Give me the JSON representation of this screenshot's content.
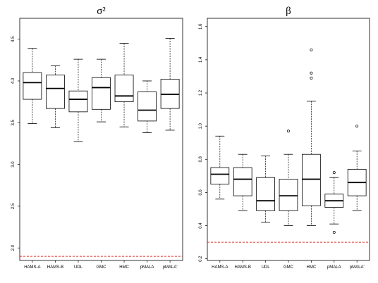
{
  "chart_data": [
    {
      "type": "boxplot",
      "title": "σ²",
      "ylim": [
        1.85,
        4.75
      ],
      "yticks": [
        "2.0",
        "2.5",
        "3.0",
        "3.5",
        "4.0",
        "4.5"
      ],
      "categories": [
        "HAMS-A",
        "HAMS-B",
        "UDL",
        "GMC",
        "HMC",
        "pMALA",
        "pMALA'"
      ],
      "boxes": [
        {
          "min": 3.49,
          "q1": 3.78,
          "median": 3.98,
          "q3": 4.1,
          "max": 4.39,
          "outliers": []
        },
        {
          "min": 3.44,
          "q1": 3.67,
          "median": 3.91,
          "q3": 4.07,
          "max": 4.18,
          "outliers": []
        },
        {
          "min": 3.27,
          "q1": 3.63,
          "median": 3.78,
          "q3": 3.88,
          "max": 4.26,
          "outliers": []
        },
        {
          "min": 3.51,
          "q1": 3.66,
          "median": 3.92,
          "q3": 4.04,
          "max": 4.26,
          "outliers": []
        },
        {
          "min": 3.45,
          "q1": 3.75,
          "median": 3.82,
          "q3": 4.07,
          "max": 4.45,
          "outliers": []
        },
        {
          "min": 3.38,
          "q1": 3.52,
          "median": 3.65,
          "q3": 3.87,
          "max": 4.0,
          "outliers": []
        },
        {
          "min": 3.41,
          "q1": 3.67,
          "median": 3.84,
          "q3": 4.02,
          "max": 4.51,
          "outliers": []
        }
      ],
      "reference_line": {
        "y": 1.9,
        "color": "#e0302a",
        "style": "dashed"
      }
    },
    {
      "type": "boxplot",
      "title": "β",
      "ylim": [
        0.19,
        1.65
      ],
      "yticks": [
        "0.2",
        "0.4",
        "0.6",
        "0.8",
        "1.0",
        "1.2",
        "1.4",
        "1.6"
      ],
      "categories": [
        "HAMS-A",
        "HAMS-B",
        "UDL",
        "GMC",
        "HMC",
        "pMALA",
        "pMALA'"
      ],
      "boxes": [
        {
          "min": 0.56,
          "q1": 0.65,
          "median": 0.71,
          "q3": 0.75,
          "max": 0.94,
          "outliers": []
        },
        {
          "min": 0.49,
          "q1": 0.58,
          "median": 0.68,
          "q3": 0.75,
          "max": 0.83,
          "outliers": []
        },
        {
          "min": 0.42,
          "q1": 0.49,
          "median": 0.55,
          "q3": 0.69,
          "max": 0.82,
          "outliers": []
        },
        {
          "min": 0.4,
          "q1": 0.49,
          "median": 0.58,
          "q3": 0.68,
          "max": 0.83,
          "outliers": [
            0.97
          ]
        },
        {
          "min": 0.4,
          "q1": 0.52,
          "median": 0.68,
          "q3": 0.83,
          "max": 1.15,
          "outliers": [
            1.29,
            1.32,
            1.46
          ]
        },
        {
          "min": 0.41,
          "q1": 0.51,
          "median": 0.55,
          "q3": 0.59,
          "max": 0.69,
          "outliers": [
            0.72,
            0.36
          ]
        },
        {
          "min": 0.49,
          "q1": 0.58,
          "median": 0.66,
          "q3": 0.74,
          "max": 0.85,
          "outliers": [
            1.0
          ]
        }
      ],
      "reference_line": {
        "y": 0.3,
        "color": "#e0302a",
        "style": "dashed"
      }
    }
  ]
}
